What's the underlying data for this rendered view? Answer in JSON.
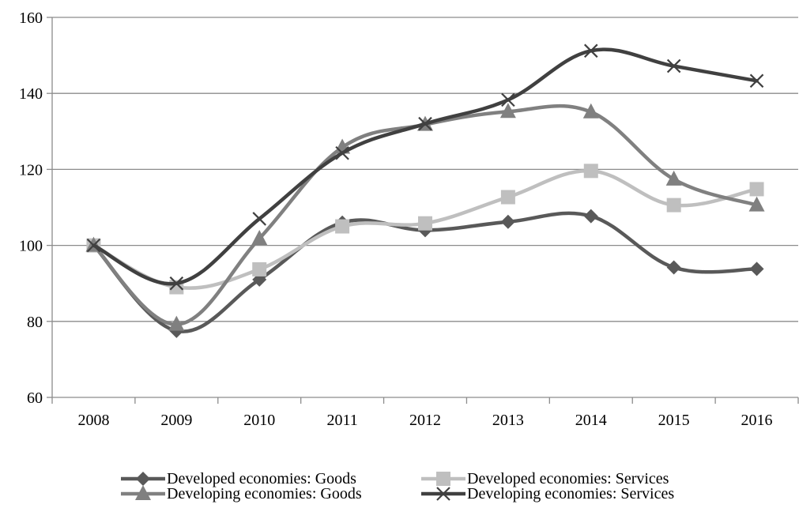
{
  "chart_data": {
    "type": "line",
    "title": "",
    "xlabel": "",
    "ylabel": "",
    "categories": [
      "2008",
      "2009",
      "2010",
      "2011",
      "2012",
      "2013",
      "2014",
      "2015",
      "2016"
    ],
    "ylim": [
      60,
      160
    ],
    "yticks": [
      60,
      80,
      100,
      120,
      140,
      160
    ],
    "grid": "horizontal",
    "legend_position": "bottom",
    "series": [
      {
        "name": "Developed economies: Goods",
        "marker": "diamond",
        "color": "#595959",
        "values": [
          100,
          77.5,
          91,
          106,
          104,
          106.2,
          107.7,
          94.2,
          93.8
        ]
      },
      {
        "name": "Developed economies: Services",
        "marker": "square",
        "color": "#bfbfbf",
        "values": [
          100,
          89,
          93.7,
          105,
          105.8,
          112.7,
          119.6,
          110.6,
          114.8
        ]
      },
      {
        "name": "Developing economies: Goods",
        "marker": "triangle",
        "color": "#808080",
        "values": [
          100,
          79.2,
          101.8,
          125.8,
          131.8,
          135.2,
          135.1,
          117.4,
          110.6
        ]
      },
      {
        "name": "Developing economies: Services",
        "marker": "x",
        "color": "#404040",
        "values": [
          100,
          90,
          107,
          124.3,
          132,
          138.3,
          151.2,
          147.2,
          143.3
        ]
      }
    ]
  }
}
